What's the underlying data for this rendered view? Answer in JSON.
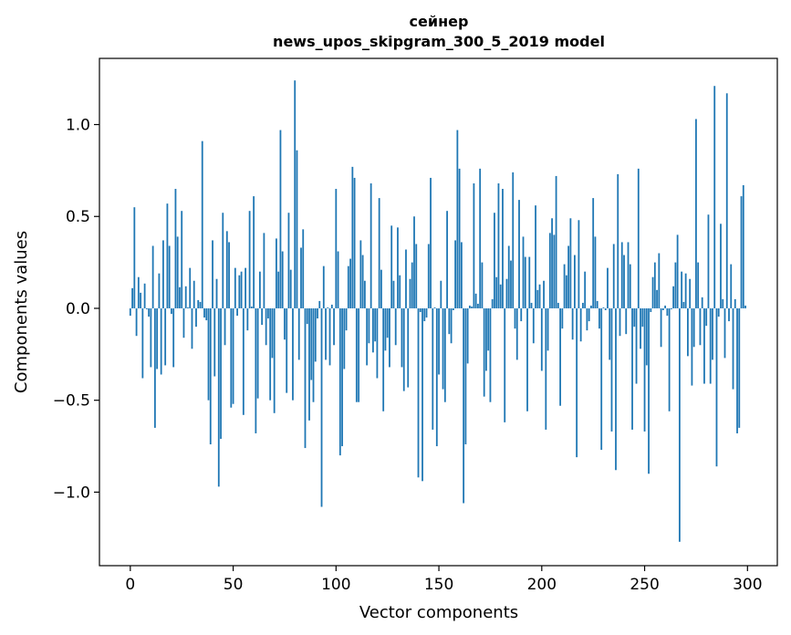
{
  "chart_data": {
    "type": "bar",
    "title_lines": [
      "сейнер",
      "news_upos_skipgram_300_5_2019 model"
    ],
    "xlabel": "Vector components",
    "ylabel": "Components values",
    "xlim": [
      -15,
      314.5
    ],
    "ylim": [
      -1.4,
      1.36
    ],
    "xticks": [
      0,
      50,
      100,
      150,
      200,
      250,
      300
    ],
    "xtick_labels": [
      "0",
      "50",
      "100",
      "150",
      "200",
      "250",
      "300"
    ],
    "yticks": [
      -1.0,
      -0.5,
      0.0,
      0.5,
      1.0
    ],
    "ytick_labels": [
      "−1.0",
      "−0.5",
      "0.0",
      "0.5",
      "1.0"
    ],
    "grid": false,
    "bar_color": "#1f77b4",
    "bar_width": 0.8,
    "values": [
      -0.04,
      0.11,
      0.55,
      -0.15,
      0.17,
      0.085,
      -0.38,
      0.135,
      -0.005,
      -0.045,
      -0.32,
      0.34,
      -0.65,
      -0.33,
      0.19,
      -0.36,
      0.37,
      -0.31,
      0.57,
      0.34,
      -0.03,
      -0.32,
      0.65,
      0.39,
      0.115,
      0.53,
      -0.16,
      0.12,
      0.005,
      0.22,
      -0.22,
      0.15,
      -0.1,
      0.045,
      0.035,
      0.91,
      -0.05,
      -0.065,
      -0.5,
      -0.74,
      0.37,
      -0.37,
      0.16,
      -0.97,
      -0.71,
      0.52,
      -0.2,
      0.42,
      0.36,
      -0.54,
      -0.52,
      0.22,
      -0.04,
      0.18,
      0.2,
      -0.58,
      0.22,
      -0.12,
      0.53,
      0.01,
      0.61,
      -0.68,
      -0.49,
      0.2,
      -0.09,
      0.41,
      -0.2,
      -0.055,
      -0.5,
      -0.27,
      -0.57,
      0.38,
      0.2,
      0.97,
      0.31,
      -0.17,
      -0.46,
      0.52,
      0.21,
      -0.5,
      1.24,
      0.86,
      -0.28,
      0.33,
      0.43,
      -0.76,
      -0.085,
      -0.61,
      -0.39,
      -0.51,
      -0.29,
      -0.055,
      0.04,
      -1.08,
      0.23,
      -0.28,
      0.005,
      -0.31,
      0.02,
      -0.2,
      0.65,
      0.31,
      -0.8,
      -0.75,
      -0.33,
      -0.12,
      0.23,
      0.27,
      0.77,
      0.71,
      -0.51,
      -0.51,
      0.37,
      0.29,
      0.15,
      -0.31,
      -0.19,
      0.68,
      -0.24,
      -0.18,
      -0.38,
      0.6,
      0.21,
      -0.56,
      -0.23,
      -0.16,
      -0.32,
      0.45,
      0.15,
      -0.2,
      0.44,
      0.18,
      -0.32,
      -0.45,
      0.32,
      -0.43,
      0.16,
      0.25,
      0.5,
      0.35,
      -0.92,
      -0.02,
      -0.94,
      -0.07,
      -0.05,
      0.35,
      0.71,
      -0.66,
      0.005,
      -0.75,
      -0.36,
      0.15,
      -0.44,
      -0.51,
      0.53,
      -0.14,
      -0.19,
      -0.01,
      0.37,
      0.97,
      0.76,
      0.36,
      -1.06,
      -0.74,
      -0.3,
      0.015,
      0.01,
      0.68,
      0.08,
      0.025,
      0.76,
      0.25,
      -0.48,
      -0.34,
      -0.23,
      -0.51,
      0.05,
      0.52,
      0.17,
      0.68,
      0.13,
      0.65,
      -0.62,
      0.16,
      0.34,
      0.26,
      0.74,
      -0.11,
      -0.28,
      0.59,
      -0.07,
      0.39,
      0.28,
      -0.56,
      0.28,
      0.03,
      -0.19,
      0.56,
      0.1,
      0.13,
      -0.34,
      0.15,
      -0.66,
      -0.23,
      0.41,
      0.49,
      0.4,
      0.72,
      0.03,
      -0.53,
      -0.11,
      0.24,
      0.18,
      0.34,
      0.49,
      -0.17,
      0.29,
      -0.81,
      0.48,
      -0.18,
      0.03,
      0.2,
      -0.12,
      -0.07,
      0.015,
      0.6,
      0.39,
      0.04,
      -0.11,
      -0.77,
      0.005,
      -0.01,
      0.22,
      -0.28,
      -0.67,
      0.35,
      -0.88,
      0.73,
      -0.15,
      0.36,
      0.29,
      -0.14,
      0.36,
      0.24,
      -0.66,
      -0.1,
      -0.41,
      0.76,
      -0.22,
      -0.1,
      -0.67,
      -0.31,
      -0.9,
      -0.02,
      0.17,
      0.25,
      0.1,
      0.3,
      -0.21,
      -0.01,
      0.015,
      -0.04,
      -0.56,
      -0.005,
      0.12,
      0.25,
      0.4,
      -1.27,
      0.2,
      0.035,
      0.19,
      -0.26,
      0.16,
      -0.42,
      -0.21,
      1.03,
      0.25,
      -0.2,
      0.06,
      -0.41,
      -0.095,
      0.51,
      -0.41,
      -0.28,
      1.21,
      -0.86,
      -0.045,
      0.46,
      0.05,
      -0.27,
      1.17,
      -0.07,
      0.24,
      -0.44,
      0.05,
      -0.68,
      -0.65,
      0.61,
      0.67,
      0.015
    ]
  }
}
